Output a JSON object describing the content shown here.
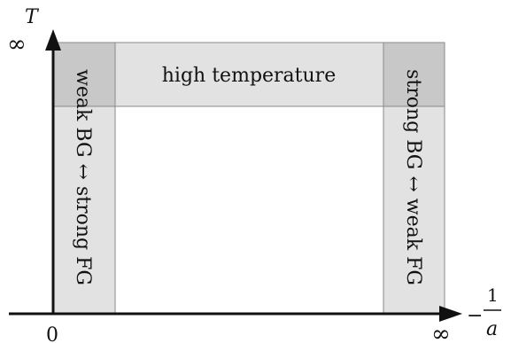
{
  "diagram": {
    "axes": {
      "y_label": "T",
      "y_top_label": "∞",
      "origin_label": "0",
      "x_right_label": "∞",
      "x_label_num": "1",
      "x_label_sign": "−",
      "x_label_den": "a"
    },
    "regions": {
      "high_temperature": "high temperature",
      "left_strip": "weak BG ↔ strong FG",
      "right_strip": "strong BG ↔ weak FG"
    },
    "colors": {
      "strip_fill": "#e2e2e2",
      "corner_fill": "#c8c8c8",
      "border": "#8a8a8a",
      "axis": "#111111"
    }
  }
}
